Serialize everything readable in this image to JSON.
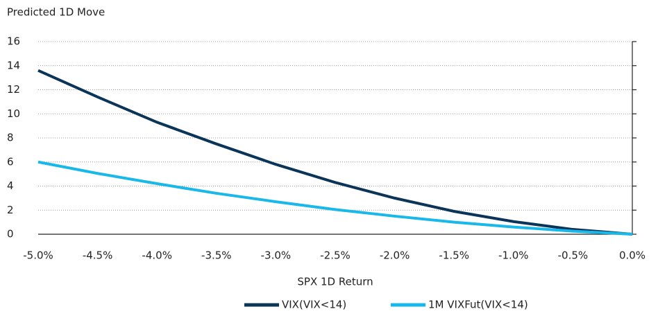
{
  "chart_data": {
    "type": "line",
    "title": "Predicted 1D Move",
    "x_label": "SPX 1D Return",
    "x": [
      -5.0,
      -4.5,
      -4.0,
      -3.5,
      -3.0,
      -2.5,
      -2.0,
      -1.5,
      -1.0,
      -0.5,
      0.0
    ],
    "series": [
      {
        "name": "VIX(VIX<14)",
        "color": "#0b3558",
        "values": [
          13.6,
          11.4,
          9.3,
          7.5,
          5.8,
          4.3,
          3.0,
          1.9,
          1.05,
          0.4,
          0.0
        ]
      },
      {
        "name": "1M VIXFut(VIX<14)",
        "color": "#19b8ea",
        "values": [
          6.0,
          5.05,
          4.2,
          3.4,
          2.7,
          2.05,
          1.5,
          1.0,
          0.6,
          0.25,
          0.0
        ]
      }
    ],
    "xlim": [
      -5.0,
      0.0
    ],
    "xticks": [
      {
        "value": -5.0,
        "label": "-5.0%"
      },
      {
        "value": -4.5,
        "label": "-4.5%"
      },
      {
        "value": -4.0,
        "label": "-4.0%"
      },
      {
        "value": -3.5,
        "label": "-3.5%"
      },
      {
        "value": -3.0,
        "label": "-3.0%"
      },
      {
        "value": -2.5,
        "label": "-2.5%"
      },
      {
        "value": -2.0,
        "label": "-2.0%"
      },
      {
        "value": -1.5,
        "label": "-1.5%"
      },
      {
        "value": -1.0,
        "label": "-1.0%"
      },
      {
        "value": -0.5,
        "label": "-0.5%"
      },
      {
        "value": 0.0,
        "label": "0.0%"
      }
    ],
    "ylim": [
      0,
      16
    ],
    "yticks": [
      0,
      2,
      4,
      6,
      8,
      10,
      12,
      14,
      16
    ],
    "grid": true,
    "legend": "bottom"
  }
}
